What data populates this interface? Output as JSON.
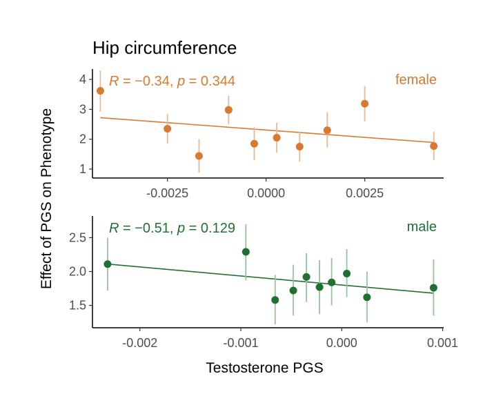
{
  "title": "Hip circumference",
  "ylabel": "Effect of PGS on Phenotype",
  "chart_data": [
    {
      "type": "scatter",
      "series_name": "female",
      "color": "#d87a30",
      "error_color": "#e9b996",
      "stat_R": "−0.34",
      "stat_p": "0.344",
      "xlim": [
        -0.0044,
        0.0045
      ],
      "ylim": [
        0.7,
        4.35
      ],
      "xticks": [
        -0.0025,
        0.0,
        0.0025
      ],
      "xtick_labels": [
        "-0.0025",
        "0.0000",
        "0.0025"
      ],
      "yticks": [
        1,
        2,
        3,
        4
      ],
      "ytick_labels": [
        "1",
        "2",
        "3",
        "4"
      ],
      "xlabel": "",
      "points": [
        {
          "x": -0.0042,
          "y": 3.62,
          "lo": 2.92,
          "hi": 4.3
        },
        {
          "x": -0.0025,
          "y": 2.35,
          "lo": 1.85,
          "hi": 2.85
        },
        {
          "x": -0.0017,
          "y": 1.44,
          "lo": 0.88,
          "hi": 2.0
        },
        {
          "x": -0.00095,
          "y": 2.98,
          "lo": 2.5,
          "hi": 3.45
        },
        {
          "x": -0.0003,
          "y": 1.85,
          "lo": 1.3,
          "hi": 2.4
        },
        {
          "x": 0.00027,
          "y": 2.05,
          "lo": 1.55,
          "hi": 2.55
        },
        {
          "x": 0.00085,
          "y": 1.75,
          "lo": 1.25,
          "hi": 2.25
        },
        {
          "x": 0.00155,
          "y": 2.3,
          "lo": 1.72,
          "hi": 2.9
        },
        {
          "x": 0.0025,
          "y": 3.19,
          "lo": 2.6,
          "hi": 3.78
        },
        {
          "x": 0.00425,
          "y": 1.77,
          "lo": 1.3,
          "hi": 2.25
        }
      ],
      "fit": {
        "x": [
          -0.0042,
          0.00425
        ],
        "y": [
          2.72,
          1.89
        ]
      }
    },
    {
      "type": "scatter",
      "series_name": "male",
      "color": "#217033",
      "error_color": "#9bc0a0",
      "stat_R": "−0.51",
      "stat_p": "0.129",
      "xlim": [
        -0.00247,
        0.00101
      ],
      "ylim": [
        1.17,
        2.82
      ],
      "xticks": [
        -0.002,
        -0.001,
        0.0,
        0.001
      ],
      "xtick_labels": [
        "-0.002",
        "-0.001",
        "0.000",
        "0.001"
      ],
      "yticks": [
        1.5,
        2.0,
        2.5
      ],
      "ytick_labels": [
        "1.5",
        "2.0",
        "2.5"
      ],
      "xlabel": "Testosterone PGS",
      "points": [
        {
          "x": -0.00232,
          "y": 2.11,
          "lo": 1.72,
          "hi": 2.5
        },
        {
          "x": -0.00095,
          "y": 2.29,
          "lo": 1.87,
          "hi": 2.7
        },
        {
          "x": -0.00066,
          "y": 1.58,
          "lo": 1.22,
          "hi": 1.95
        },
        {
          "x": -0.00048,
          "y": 1.72,
          "lo": 1.35,
          "hi": 2.1
        },
        {
          "x": -0.00035,
          "y": 1.92,
          "lo": 1.55,
          "hi": 2.27
        },
        {
          "x": -0.00022,
          "y": 1.77,
          "lo": 1.37,
          "hi": 2.17
        },
        {
          "x": -0.0001,
          "y": 1.84,
          "lo": 1.5,
          "hi": 2.2
        },
        {
          "x": 5e-05,
          "y": 1.97,
          "lo": 1.62,
          "hi": 2.33
        },
        {
          "x": 0.00025,
          "y": 1.62,
          "lo": 1.25,
          "hi": 2.0
        },
        {
          "x": 0.00091,
          "y": 1.76,
          "lo": 1.35,
          "hi": 2.18
        }
      ],
      "fit": {
        "x": [
          -0.00232,
          0.00091
        ],
        "y": [
          2.11,
          1.68
        ]
      }
    }
  ]
}
